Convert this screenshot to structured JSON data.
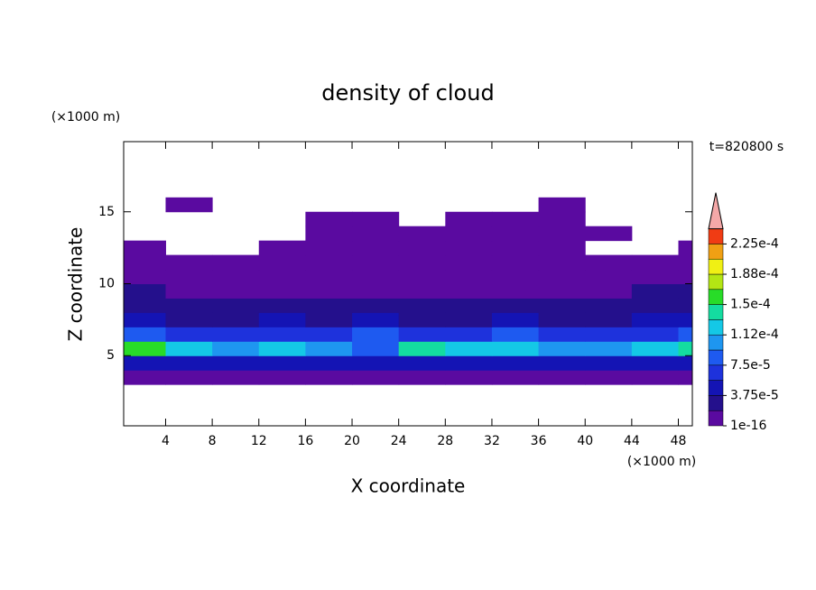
{
  "chart_data": {
    "type": "contour",
    "title": "density of cloud",
    "x_label": "X coordinate",
    "y_label": "Z coordinate",
    "x_unit": "(×1000 m)",
    "y_unit": "(×1000 m)",
    "annotation": "t=820800 s",
    "xlim": [
      0.4,
      49.2
    ],
    "ylim": [
      0.125,
      19.875
    ],
    "xticks": [
      4,
      8,
      12,
      16,
      20,
      24,
      28,
      32,
      36,
      40,
      44,
      48
    ],
    "yticks": [
      5,
      10,
      15
    ],
    "x": [
      2,
      6,
      10,
      14,
      18,
      22,
      26,
      30,
      34,
      38,
      42,
      46,
      50
    ],
    "y": [
      3.5,
      4.5,
      5.5,
      6.5,
      7.5,
      8.5,
      9.5,
      10.5,
      11.5,
      12.5,
      13.5,
      14.5,
      15.5
    ],
    "values": [
      [
        1e-06,
        1e-06,
        1e-06,
        1e-06,
        1e-06,
        1e-06,
        1e-06,
        1e-06,
        1e-06,
        1e-06,
        1e-06,
        1e-06,
        1e-06
      ],
      [
        5e-05,
        4e-05,
        5e-05,
        4e-05,
        4e-05,
        5e-05,
        4e-05,
        5e-05,
        4e-05,
        5e-05,
        4e-05,
        5e-05,
        4e-05
      ],
      [
        0.00015,
        0.00013,
        0.0001,
        0.00012,
        0.00011,
        9e-05,
        0.00014,
        0.00013,
        0.00012,
        0.00011,
        0.0001,
        0.00012,
        0.00014
      ],
      [
        8e-05,
        7e-05,
        6e-05,
        7e-05,
        6e-05,
        8e-05,
        6e-05,
        7e-05,
        8e-05,
        7e-05,
        6e-05,
        7e-05,
        8e-05
      ],
      [
        4e-05,
        3e-05,
        3e-05,
        4e-05,
        3e-05,
        4e-05,
        3e-05,
        3e-05,
        4e-05,
        3e-05,
        3e-05,
        4e-05,
        4e-05
      ],
      [
        2.5e-05,
        2e-05,
        2e-05,
        2.5e-05,
        2e-05,
        2e-05,
        2e-05,
        2e-05,
        2e-05,
        2e-05,
        2e-05,
        2.5e-05,
        2.5e-05
      ],
      [
        2e-05,
        1e-05,
        1e-05,
        1e-05,
        1e-05,
        1e-05,
        1e-05,
        1e-05,
        1e-05,
        1e-05,
        1e-05,
        2e-05,
        2e-05
      ],
      [
        1e-05,
        5e-06,
        5e-06,
        5e-06,
        5e-06,
        1e-05,
        5e-06,
        1e-05,
        5e-06,
        5e-06,
        5e-06,
        1e-05,
        1e-05
      ],
      [
        5e-06,
        5e-06,
        3e-06,
        3e-06,
        3e-06,
        3e-06,
        5e-06,
        5e-06,
        5e-06,
        3e-06,
        3e-06,
        5e-06,
        5e-06
      ],
      [
        3e-06,
        null,
        null,
        3e-06,
        2e-06,
        2e-06,
        3e-06,
        3e-06,
        3e-06,
        2e-06,
        null,
        null,
        2e-06
      ],
      [
        null,
        null,
        null,
        null,
        2e-06,
        2e-06,
        2e-06,
        2e-06,
        2e-06,
        2e-06,
        2e-06,
        null,
        null
      ],
      [
        null,
        null,
        null,
        null,
        1e-06,
        1e-06,
        null,
        1e-06,
        1e-06,
        1e-06,
        null,
        null,
        null
      ],
      [
        null,
        1e-06,
        null,
        null,
        null,
        null,
        null,
        null,
        null,
        1e-06,
        null,
        null,
        null
      ]
    ],
    "colorbar": {
      "levels": [
        1e-16,
        1.875e-05,
        3.75e-05,
        5.625e-05,
        7.5e-05,
        9.375e-05,
        0.0001125,
        0.00013125,
        0.00015,
        0.00016875,
        0.0001875,
        0.00020625,
        0.000225,
        0.00024375
      ],
      "colors": [
        "#5a0aa0",
        "#24108c",
        "#1414b4",
        "#1e32dc",
        "#1e5af0",
        "#1e96f0",
        "#14c8e6",
        "#14dca0",
        "#28dc28",
        "#b4e614",
        "#f0f014",
        "#f0a014",
        "#f03c14"
      ],
      "extend_color": "#f4a8a8",
      "ticks": [
        {
          "value": 1e-16,
          "label": "1e-16"
        },
        {
          "value": 3.75e-05,
          "label": "3.75e-5"
        },
        {
          "value": 7.5e-05,
          "label": "7.5e-5"
        },
        {
          "value": 0.0001125,
          "label": "1.12e-4"
        },
        {
          "value": 0.00015,
          "label": "1.5e-4"
        },
        {
          "value": 0.0001875,
          "label": "1.88e-4"
        },
        {
          "value": 0.000225,
          "label": "2.25e-4"
        }
      ]
    }
  }
}
